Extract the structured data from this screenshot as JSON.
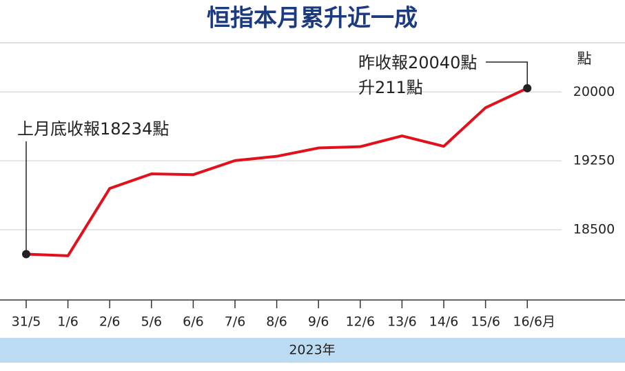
{
  "chart_data": {
    "type": "line",
    "title": "恒指本月累升近一成",
    "y_label": "點",
    "x_label": "2023年",
    "categories": [
      "31/5",
      "1/6",
      "2/6",
      "5/6",
      "6/6",
      "7/6",
      "8/6",
      "9/6",
      "12/6",
      "13/6",
      "14/6",
      "15/6",
      "16/6月"
    ],
    "series": [
      {
        "name": "恒指",
        "color": "#e3101c",
        "values": [
          18234,
          18216,
          18949,
          19108,
          19099,
          19252,
          19299,
          19390,
          19404,
          19521,
          19408,
          19828,
          20040
        ]
      }
    ],
    "ylim": [
      17735,
      20535
    ],
    "yticks": [
      18500,
      19250,
      20000
    ],
    "grid": true,
    "annotations": [
      "上月底收報18234點",
      "昨收報20040點",
      "升211點"
    ]
  }
}
